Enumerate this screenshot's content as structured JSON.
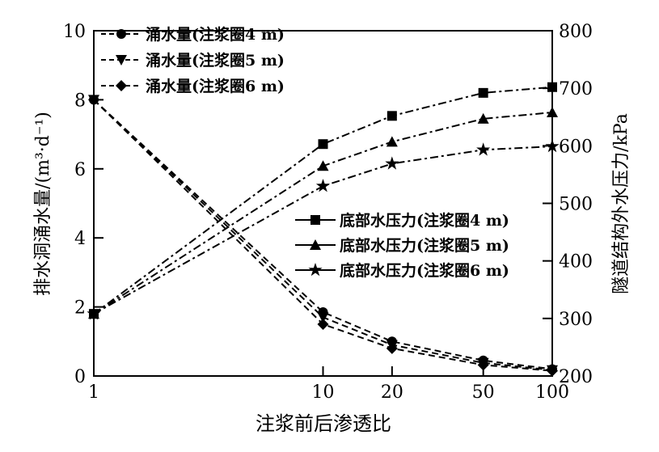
{
  "chart_data": {
    "type": "line",
    "xlabel": "注浆前后渗透比",
    "ylabel_left": "排水洞涌水量/(m³·d⁻¹)",
    "ylabel_right": "隧道结构外水压力/kPa",
    "x_scale": "log",
    "x": [
      1,
      10,
      20,
      50,
      100
    ],
    "x_ticks": [
      "1",
      "10",
      "20",
      "50",
      "100"
    ],
    "ylim_left": [
      0,
      10
    ],
    "yticks_left": [
      "0",
      "2",
      "4",
      "6",
      "8",
      "10"
    ],
    "ylim_right": [
      200,
      800
    ],
    "yticks_right": [
      "200",
      "300",
      "400",
      "500",
      "600",
      "700",
      "800"
    ],
    "series": [
      {
        "name": "涌水量(注浆圈4 m)",
        "axis": "left",
        "marker": "circle",
        "style": "dashed",
        "values": [
          8.0,
          1.85,
          1.0,
          0.45,
          0.2
        ]
      },
      {
        "name": "涌水量(注浆圈5 m)",
        "axis": "left",
        "marker": "triangle-down",
        "style": "dashed",
        "values": [
          8.0,
          1.7,
          0.9,
          0.38,
          0.17
        ]
      },
      {
        "name": "涌水量(注浆圈6 m)",
        "axis": "left",
        "marker": "diamond",
        "style": "dashed",
        "values": [
          8.0,
          1.5,
          0.8,
          0.32,
          0.15
        ]
      },
      {
        "name": "底部水压力(注浆圈4 m)",
        "axis": "right",
        "marker": "square",
        "style": "dashdot",
        "values": [
          308,
          603,
          652,
          692,
          702
        ]
      },
      {
        "name": "底部水压力(注浆圈5 m)",
        "axis": "right",
        "marker": "triangle-up",
        "style": "dashdot",
        "values": [
          308,
          565,
          607,
          647,
          658
        ]
      },
      {
        "name": "底部水压力(注浆圈6 m)",
        "axis": "right",
        "marker": "star",
        "style": "dashdot",
        "values": [
          308,
          530,
          569,
          593,
          599
        ]
      }
    ]
  }
}
